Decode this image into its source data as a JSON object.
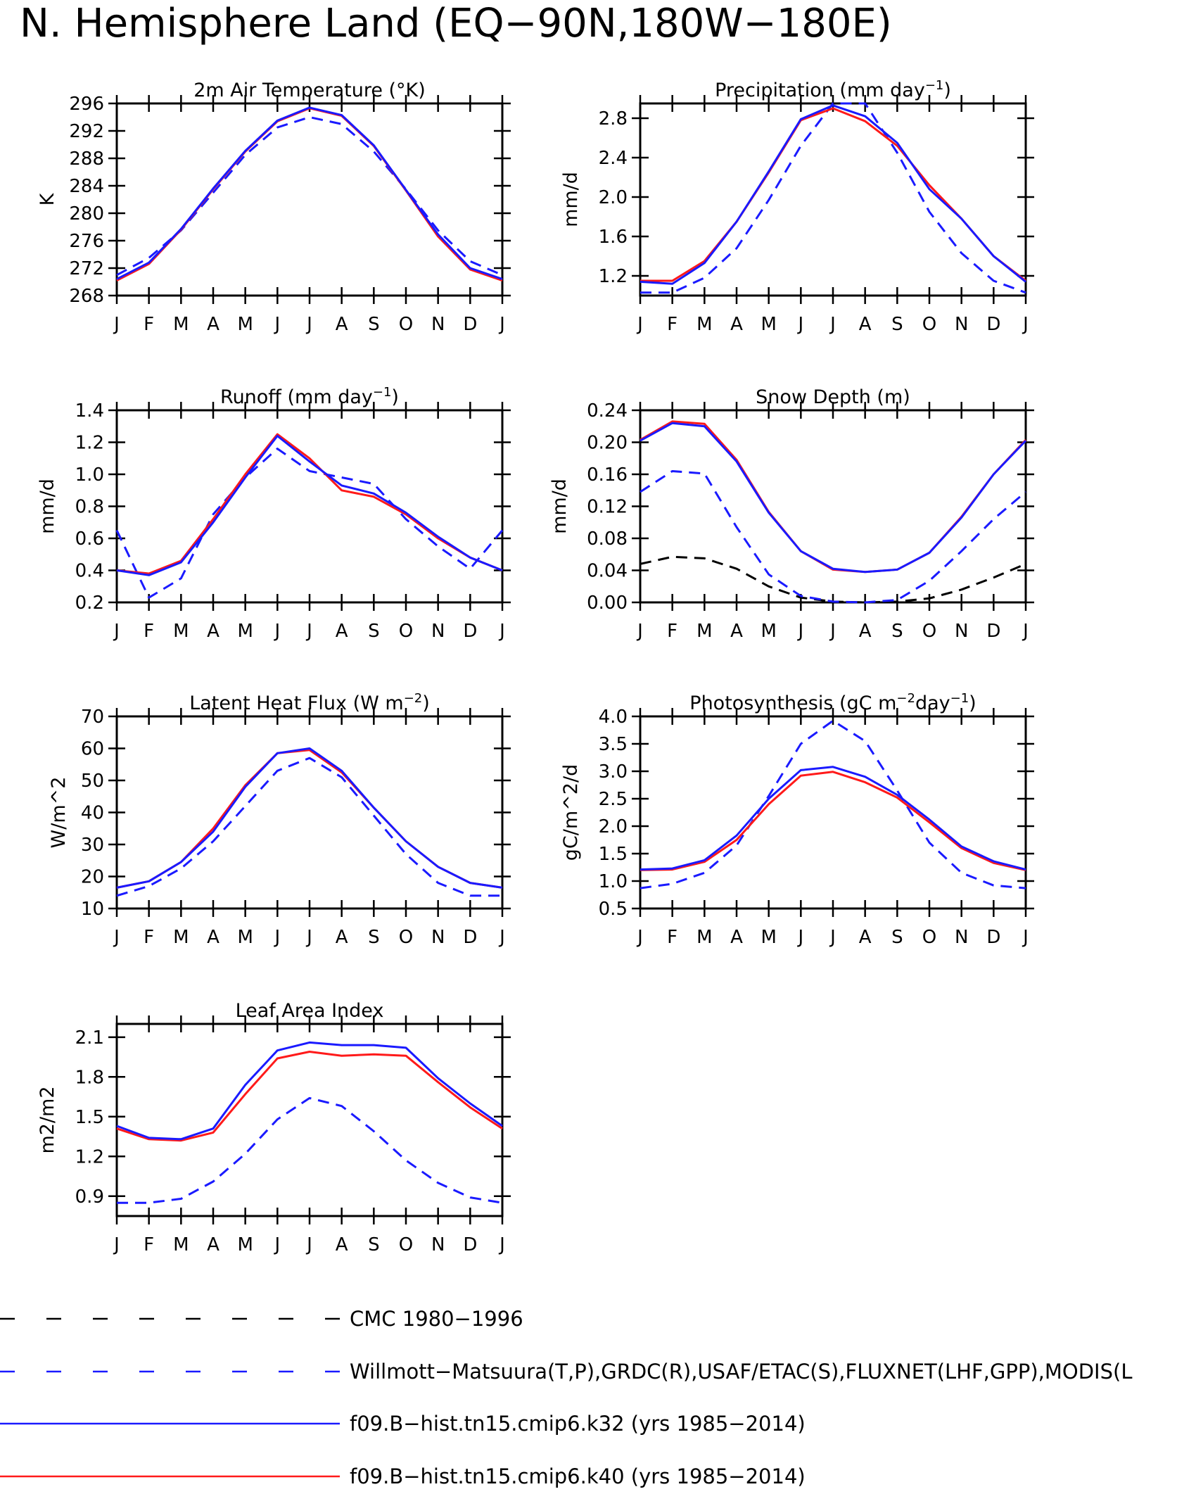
{
  "title": "N. Hemisphere Land (EQ−90N,180W−180E)",
  "months": [
    "J",
    "F",
    "M",
    "A",
    "M",
    "J",
    "J",
    "A",
    "S",
    "O",
    "N",
    "D",
    "J"
  ],
  "colors": {
    "obs": "#1a1aff",
    "k32": "#1a1aff",
    "k40": "#ff1a1a",
    "cmc": "#000000",
    "axis": "#000000"
  },
  "legend": [
    {
      "key": "cmc",
      "label": "CMC 1980−1996",
      "dash": "long"
    },
    {
      "key": "obs",
      "label": "Willmott−Matsuura(T,P),GRDC(R),USAF/ETAC(S),FLUXNET(LHF,GPP),MODIS(L",
      "dash": "long"
    },
    {
      "key": "k32",
      "label": "f09.B−hist.tn15.cmip6.k32 (yrs 1985−2014)",
      "dash": "solid"
    },
    {
      "key": "k40",
      "label": "f09.B−hist.tn15.cmip6.k40 (yrs 1985−2014)",
      "dash": "solid"
    }
  ],
  "chart_data": [
    {
      "type": "line",
      "title": "2m Air Temperature (°K)",
      "ylabel": "K",
      "ylim": [
        268,
        296
      ],
      "yticks": [
        "268",
        "272",
        "276",
        "280",
        "284",
        "288",
        "292",
        "296"
      ],
      "x": [
        "J",
        "F",
        "M",
        "A",
        "M",
        "J",
        "J",
        "A",
        "S",
        "O",
        "N",
        "D",
        "J"
      ],
      "series": [
        {
          "key": "obs",
          "dash": true,
          "values": [
            271.0,
            273.5,
            277.5,
            283.0,
            288.5,
            292.5,
            294.0,
            293.0,
            289.0,
            283.5,
            277.5,
            273.0,
            271.0
          ]
        },
        {
          "key": "k40",
          "dash": false,
          "values": [
            270.2,
            272.6,
            277.6,
            283.5,
            289.0,
            293.4,
            295.3,
            294.2,
            289.8,
            283.3,
            276.6,
            271.8,
            270.2
          ]
        },
        {
          "key": "k32",
          "dash": false,
          "values": [
            270.4,
            272.8,
            277.7,
            283.6,
            289.1,
            293.5,
            295.4,
            294.3,
            289.9,
            283.4,
            276.9,
            272.0,
            270.4
          ]
        }
      ]
    },
    {
      "type": "line",
      "title": "Precipitation (mm day",
      "title_sup": "−1",
      "title_end": ")",
      "ylabel": "mm/d",
      "ylim": [
        1.0,
        2.95
      ],
      "yticks": [
        "1.2",
        "1.6",
        "2.0",
        "2.4",
        "2.8"
      ],
      "x": [
        "J",
        "F",
        "M",
        "A",
        "M",
        "J",
        "J",
        "A",
        "S",
        "O",
        "N",
        "D",
        "J"
      ],
      "series": [
        {
          "key": "obs",
          "dash": true,
          "values": [
            1.03,
            1.03,
            1.18,
            1.48,
            1.97,
            2.52,
            2.95,
            2.95,
            2.45,
            1.85,
            1.43,
            1.15,
            1.03
          ]
        },
        {
          "key": "k40",
          "dash": false,
          "values": [
            1.15,
            1.15,
            1.35,
            1.75,
            2.25,
            2.78,
            2.9,
            2.77,
            2.52,
            2.12,
            1.78,
            1.4,
            1.15
          ]
        },
        {
          "key": "k32",
          "dash": false,
          "values": [
            1.14,
            1.12,
            1.33,
            1.75,
            2.26,
            2.79,
            2.93,
            2.82,
            2.55,
            2.08,
            1.78,
            1.4,
            1.14
          ]
        }
      ]
    },
    {
      "type": "line",
      "title": "Runoff (mm day",
      "title_sup": "−1",
      "title_end": ")",
      "ylabel": "mm/d",
      "ylim": [
        0.2,
        1.4
      ],
      "yticks": [
        "0.2",
        "0.4",
        "0.6",
        "0.8",
        "1.0",
        "1.2",
        "1.4"
      ],
      "x": [
        "J",
        "F",
        "M",
        "A",
        "M",
        "J",
        "J",
        "A",
        "S",
        "O",
        "N",
        "D",
        "J"
      ],
      "series": [
        {
          "key": "obs",
          "dash": true,
          "values": [
            0.65,
            0.23,
            0.35,
            0.75,
            0.98,
            1.16,
            1.02,
            0.98,
            0.94,
            0.72,
            0.55,
            0.41,
            0.65
          ]
        },
        {
          "key": "k40",
          "dash": false,
          "values": [
            0.4,
            0.38,
            0.46,
            0.72,
            1.0,
            1.25,
            1.1,
            0.9,
            0.86,
            0.75,
            0.6,
            0.48,
            0.4
          ]
        },
        {
          "key": "k32",
          "dash": false,
          "values": [
            0.4,
            0.37,
            0.45,
            0.7,
            0.98,
            1.24,
            1.08,
            0.93,
            0.88,
            0.76,
            0.61,
            0.48,
            0.4
          ]
        }
      ]
    },
    {
      "type": "line",
      "title": "Snow Depth (m)",
      "ylabel": "mm/d",
      "ylim": [
        0.0,
        0.24
      ],
      "yticks": [
        "0.00",
        "0.04",
        "0.08",
        "0.12",
        "0.16",
        "0.20",
        "0.24"
      ],
      "x": [
        "J",
        "F",
        "M",
        "A",
        "M",
        "J",
        "J",
        "A",
        "S",
        "O",
        "N",
        "D",
        "J"
      ],
      "series": [
        {
          "key": "cmc",
          "dash": true,
          "values": [
            0.048,
            0.057,
            0.055,
            0.042,
            0.02,
            0.006,
            0.001,
            0.0,
            0.001,
            0.005,
            0.016,
            0.031,
            0.048
          ]
        },
        {
          "key": "obs",
          "dash": true,
          "values": [
            0.138,
            0.164,
            0.161,
            0.094,
            0.035,
            0.008,
            0.001,
            0.0,
            0.003,
            0.027,
            0.064,
            0.104,
            0.138
          ]
        },
        {
          "key": "k40",
          "dash": false,
          "values": [
            0.203,
            0.226,
            0.223,
            0.178,
            0.113,
            0.064,
            0.041,
            0.038,
            0.041,
            0.062,
            0.107,
            0.16,
            0.203
          ]
        },
        {
          "key": "k32",
          "dash": false,
          "values": [
            0.202,
            0.224,
            0.22,
            0.176,
            0.112,
            0.064,
            0.042,
            0.038,
            0.041,
            0.062,
            0.106,
            0.16,
            0.202
          ]
        }
      ]
    },
    {
      "type": "line",
      "title": "Latent Heat Flux (W m",
      "title_sup": "−2",
      "title_end": ")",
      "ylabel": "W/m^2",
      "ylim": [
        10,
        70
      ],
      "yticks": [
        "10",
        "20",
        "30",
        "40",
        "50",
        "60",
        "70"
      ],
      "x": [
        "J",
        "F",
        "M",
        "A",
        "M",
        "J",
        "J",
        "A",
        "S",
        "O",
        "N",
        "D",
        "J"
      ],
      "series": [
        {
          "key": "obs",
          "dash": true,
          "values": [
            14.0,
            17.0,
            22.5,
            31.0,
            42.0,
            53.0,
            57.0,
            51.0,
            39.0,
            27.0,
            18.0,
            14.0,
            14.0
          ]
        },
        {
          "key": "k40",
          "dash": false,
          "values": [
            16.5,
            18.5,
            24.5,
            35.0,
            48.5,
            58.5,
            59.5,
            52.5,
            41.5,
            31.0,
            23.0,
            18.0,
            16.5
          ]
        },
        {
          "key": "k32",
          "dash": false,
          "values": [
            16.5,
            18.5,
            24.5,
            34.0,
            48.0,
            58.5,
            60.0,
            53.0,
            41.5,
            31.0,
            23.0,
            18.0,
            16.5
          ]
        }
      ]
    },
    {
      "type": "line",
      "title": "Photosynthesis (gC m",
      "title_sup": "−2",
      "title_mid": "day",
      "title_sup2": "−1",
      "title_end": ")",
      "ylabel": "gC/m^2/d",
      "ylim": [
        0.5,
        4.0
      ],
      "yticks": [
        "0.5",
        "1.0",
        "1.5",
        "2.0",
        "2.5",
        "3.0",
        "3.5",
        "4.0"
      ],
      "x": [
        "J",
        "F",
        "M",
        "A",
        "M",
        "J",
        "J",
        "A",
        "S",
        "O",
        "N",
        "D",
        "J"
      ],
      "series": [
        {
          "key": "obs",
          "dash": true,
          "values": [
            0.87,
            0.95,
            1.15,
            1.65,
            2.55,
            3.5,
            3.92,
            3.55,
            2.65,
            1.7,
            1.15,
            0.92,
            0.87
          ]
        },
        {
          "key": "k40",
          "dash": false,
          "values": [
            1.2,
            1.21,
            1.35,
            1.75,
            2.4,
            2.92,
            2.99,
            2.8,
            2.52,
            2.07,
            1.6,
            1.33,
            1.2
          ]
        },
        {
          "key": "k32",
          "dash": false,
          "values": [
            1.21,
            1.23,
            1.38,
            1.83,
            2.5,
            3.02,
            3.08,
            2.9,
            2.57,
            2.12,
            1.63,
            1.36,
            1.21
          ]
        }
      ]
    },
    {
      "type": "line",
      "title": "Leaf Area Index",
      "ylabel": "m2/m2",
      "ylim": [
        0.75,
        2.2
      ],
      "yticks": [
        "0.9",
        "1.2",
        "1.5",
        "1.8",
        "2.1"
      ],
      "x": [
        "J",
        "F",
        "M",
        "A",
        "M",
        "J",
        "J",
        "A",
        "S",
        "O",
        "N",
        "D",
        "J"
      ],
      "series": [
        {
          "key": "obs",
          "dash": true,
          "values": [
            0.85,
            0.85,
            0.88,
            1.01,
            1.22,
            1.48,
            1.64,
            1.58,
            1.39,
            1.17,
            1.0,
            0.89,
            0.85
          ]
        },
        {
          "key": "k40",
          "dash": false,
          "values": [
            1.41,
            1.33,
            1.32,
            1.38,
            1.67,
            1.94,
            1.99,
            1.96,
            1.97,
            1.96,
            1.76,
            1.57,
            1.41
          ]
        },
        {
          "key": "k32",
          "dash": false,
          "values": [
            1.43,
            1.34,
            1.33,
            1.41,
            1.74,
            2.0,
            2.06,
            2.04,
            2.04,
            2.02,
            1.79,
            1.6,
            1.43
          ]
        }
      ]
    }
  ]
}
